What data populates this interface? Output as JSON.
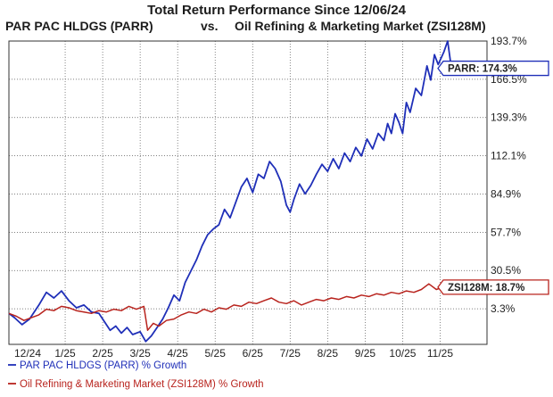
{
  "chart_data": {
    "type": "line",
    "title_line1": "Total Return Performance Since 12/06/24",
    "title_line2_left": "PAR PAC HLDGS (PARR)",
    "title_vs": "vs.",
    "title_line2_right": "Oil Refining & Marketing Market (ZSI128M)",
    "x_labels": [
      "12/24",
      "1/25",
      "2/25",
      "3/25",
      "4/25",
      "5/25",
      "6/25",
      "7/25",
      "8/25",
      "9/25",
      "10/25",
      "11/25"
    ],
    "y_ticks": [
      "193.7%",
      "166.5%",
      "139.3%",
      "112.1%",
      "84.9%",
      "57.7%",
      "30.5%",
      "3.3%"
    ],
    "y_tick_values": [
      193.7,
      166.5,
      139.3,
      112.1,
      84.9,
      57.7,
      30.5,
      3.3
    ],
    "ylim": [
      -22,
      193.7
    ],
    "grid": true,
    "series": [
      {
        "name": "PAR PAC HLDGS (PARR) % Growth",
        "color": "#1f2fb8",
        "callout": "PARR: 174.3%",
        "last_value": 174.3,
        "points": [
          [
            0,
            0
          ],
          [
            0.15,
            -3
          ],
          [
            0.35,
            -8
          ],
          [
            0.55,
            -4
          ],
          [
            0.8,
            6
          ],
          [
            1.0,
            15
          ],
          [
            1.2,
            11
          ],
          [
            1.4,
            16
          ],
          [
            1.6,
            9
          ],
          [
            1.8,
            4
          ],
          [
            2.0,
            6
          ],
          [
            2.2,
            1
          ],
          [
            2.4,
            0
          ],
          [
            2.55,
            -6
          ],
          [
            2.7,
            -12
          ],
          [
            2.85,
            -9
          ],
          [
            3.0,
            -14
          ],
          [
            3.15,
            -10
          ],
          [
            3.3,
            -15
          ],
          [
            3.5,
            -13
          ],
          [
            3.65,
            -20
          ],
          [
            3.8,
            -16
          ],
          [
            3.95,
            -10
          ],
          [
            4.1,
            -4
          ],
          [
            4.25,
            4
          ],
          [
            4.4,
            13
          ],
          [
            4.55,
            9
          ],
          [
            4.7,
            22
          ],
          [
            4.85,
            30
          ],
          [
            5.0,
            38
          ],
          [
            5.15,
            48
          ],
          [
            5.3,
            56
          ],
          [
            5.45,
            60
          ],
          [
            5.6,
            63
          ],
          [
            5.75,
            74
          ],
          [
            5.9,
            68
          ],
          [
            6.05,
            79
          ],
          [
            6.2,
            90
          ],
          [
            6.35,
            96
          ],
          [
            6.5,
            86
          ],
          [
            6.65,
            99
          ],
          [
            6.8,
            96
          ],
          [
            6.95,
            108
          ],
          [
            7.1,
            103
          ],
          [
            7.25,
            94
          ],
          [
            7.4,
            77
          ],
          [
            7.5,
            72
          ],
          [
            7.6,
            81
          ],
          [
            7.75,
            92
          ],
          [
            7.9,
            85
          ],
          [
            8.05,
            91
          ],
          [
            8.2,
            99
          ],
          [
            8.35,
            106
          ],
          [
            8.5,
            101
          ],
          [
            8.65,
            110
          ],
          [
            8.8,
            103
          ],
          [
            8.95,
            114
          ],
          [
            9.1,
            108
          ],
          [
            9.25,
            118
          ],
          [
            9.4,
            112
          ],
          [
            9.55,
            124
          ],
          [
            9.7,
            117
          ],
          [
            9.85,
            128
          ],
          [
            10.0,
            123
          ],
          [
            10.1,
            135
          ],
          [
            10.2,
            128
          ],
          [
            10.3,
            142
          ],
          [
            10.4,
            136
          ],
          [
            10.5,
            128
          ],
          [
            10.6,
            150
          ],
          [
            10.7,
            143
          ],
          [
            10.85,
            160
          ],
          [
            11.0,
            155
          ],
          [
            11.15,
            176
          ],
          [
            11.25,
            166
          ],
          [
            11.35,
            184
          ],
          [
            11.45,
            177
          ],
          [
            11.6,
            186
          ],
          [
            11.7,
            193.7
          ],
          [
            11.8,
            174.3
          ]
        ]
      },
      {
        "name": "Oil Refining & Marketing Market (ZSI128M) % Growth",
        "color": "#b8231d",
        "callout": "ZSI128M: 18.7%",
        "last_value": 18.7,
        "points": [
          [
            0,
            0
          ],
          [
            0.2,
            -2
          ],
          [
            0.4,
            -5
          ],
          [
            0.6,
            -3
          ],
          [
            0.8,
            -1
          ],
          [
            1.0,
            3
          ],
          [
            1.2,
            2
          ],
          [
            1.4,
            5
          ],
          [
            1.6,
            4
          ],
          [
            1.8,
            2
          ],
          [
            2.0,
            1
          ],
          [
            2.2,
            0
          ],
          [
            2.4,
            2
          ],
          [
            2.6,
            1
          ],
          [
            2.8,
            3
          ],
          [
            3.0,
            2
          ],
          [
            3.2,
            5
          ],
          [
            3.4,
            3
          ],
          [
            3.6,
            5
          ],
          [
            3.7,
            -12
          ],
          [
            3.85,
            -7
          ],
          [
            4.0,
            -9
          ],
          [
            4.2,
            -5
          ],
          [
            4.4,
            -4
          ],
          [
            4.6,
            -1
          ],
          [
            4.8,
            1
          ],
          [
            5.0,
            0
          ],
          [
            5.2,
            3
          ],
          [
            5.4,
            1
          ],
          [
            5.6,
            4
          ],
          [
            5.8,
            3
          ],
          [
            6.0,
            6
          ],
          [
            6.2,
            5
          ],
          [
            6.4,
            8
          ],
          [
            6.6,
            7
          ],
          [
            6.8,
            9
          ],
          [
            7.0,
            11
          ],
          [
            7.2,
            8
          ],
          [
            7.4,
            7
          ],
          [
            7.6,
            9
          ],
          [
            7.8,
            6
          ],
          [
            8.0,
            8
          ],
          [
            8.2,
            10
          ],
          [
            8.4,
            9
          ],
          [
            8.6,
            11
          ],
          [
            8.8,
            10
          ],
          [
            9.0,
            12
          ],
          [
            9.2,
            11
          ],
          [
            9.4,
            13
          ],
          [
            9.6,
            12
          ],
          [
            9.8,
            14
          ],
          [
            10.0,
            13
          ],
          [
            10.2,
            15
          ],
          [
            10.4,
            14
          ],
          [
            10.6,
            16
          ],
          [
            10.8,
            15
          ],
          [
            11.0,
            17
          ],
          [
            11.2,
            21
          ],
          [
            11.4,
            17
          ],
          [
            11.6,
            19
          ],
          [
            11.8,
            18.7
          ]
        ]
      }
    ]
  }
}
